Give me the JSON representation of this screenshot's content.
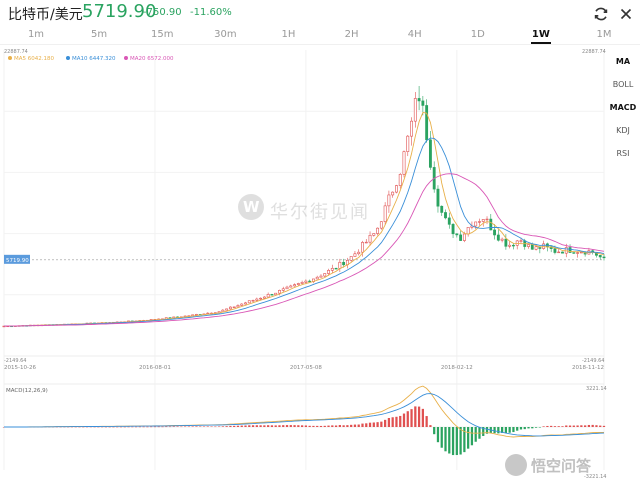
{
  "header": {
    "pair": "比特币/美元",
    "price": "5719.90",
    "change": "-750.90",
    "change_pct": "-11.60%",
    "up_color": "#e05050",
    "down_color": "#2aa360"
  },
  "tabs": [
    {
      "label": "1m",
      "active": false
    },
    {
      "label": "5m",
      "active": false
    },
    {
      "label": "15m",
      "active": false
    },
    {
      "label": "30m",
      "active": false
    },
    {
      "label": "1H",
      "active": false
    },
    {
      "label": "2H",
      "active": false
    },
    {
      "label": "4H",
      "active": false
    },
    {
      "label": "1D",
      "active": false
    },
    {
      "label": "1W",
      "active": true
    },
    {
      "label": "1M",
      "active": false
    }
  ],
  "side_menu": [
    {
      "label": "MA",
      "active": true
    },
    {
      "label": "BOLL",
      "active": false
    },
    {
      "label": "MACD",
      "active": true
    },
    {
      "label": "KDJ",
      "active": false
    },
    {
      "label": "RSI",
      "active": false
    }
  ],
  "watermark": "华尔街见闻",
  "bottom_watermark": "悟空问答",
  "chart_data": [
    {
      "type": "candlestick",
      "legend": [
        {
          "name": "MA5",
          "value": "6042.180",
          "color": "#e8b04a"
        },
        {
          "name": "MA10",
          "value": "6447.320",
          "color": "#3a8fd8"
        },
        {
          "name": "MA20",
          "value": "6572.000",
          "color": "#d957b6"
        }
      ],
      "y_top_label": "22887.74",
      "y_bottom_label": "-2149.64",
      "ylim": [
        -2149.64,
        22887.74
      ],
      "current_price_label": "5719.90",
      "current_price": 5719.9,
      "x_tick_labels": [
        "2015-10-26",
        "2016-08-01",
        "2017-05-08",
        "2018-02-12",
        "2018-11-12"
      ],
      "x_range": [
        "2015-10-26",
        "2018-11-12"
      ],
      "grid": true,
      "ma5_color": "#e8b04a",
      "ma10_color": "#3a8fd8",
      "ma20_color": "#d957b6"
    },
    {
      "type": "bar",
      "title": "MACD(12,26,9)",
      "y_top_label": "3221.14",
      "y_bottom_label": "-3221.14",
      "ylim": [
        -3221.14,
        3221.14
      ],
      "dif_color": "#e8b04a",
      "dea_color": "#3a8fd8"
    }
  ]
}
